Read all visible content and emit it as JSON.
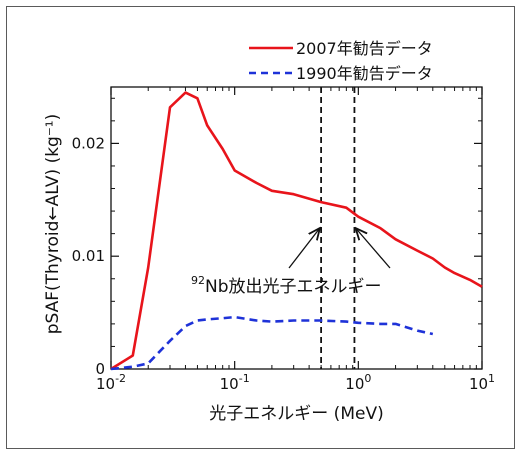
{
  "chart_data": {
    "type": "line",
    "title": "",
    "xlabel": "光子エネルギー (MeV)",
    "ylabel": "pSAF(Thyroid←ALV) (kg⁻¹)",
    "xscale": "log",
    "xlim": [
      0.01,
      10
    ],
    "ylim": [
      0,
      0.025
    ],
    "x_ticks": [
      {
        "value": 0.01,
        "base": "10",
        "exp": "-2"
      },
      {
        "value": 0.1,
        "base": "10",
        "exp": "-1"
      },
      {
        "value": 1,
        "base": "10",
        "exp": "0"
      },
      {
        "value": 10,
        "base": "10",
        "exp": "1"
      }
    ],
    "y_ticks": [
      {
        "value": 0,
        "label": "0"
      },
      {
        "value": 0.01,
        "label": "0.01"
      },
      {
        "value": 0.02,
        "label": "0.02"
      }
    ],
    "grid": false,
    "legend_position": "top-right",
    "series": [
      {
        "name": "2007年勧告データ",
        "color": "#e8141b",
        "style": "solid",
        "x": [
          0.01,
          0.015,
          0.02,
          0.03,
          0.04,
          0.05,
          0.06,
          0.08,
          0.1,
          0.15,
          0.2,
          0.3,
          0.5,
          0.8,
          1,
          1.5,
          2,
          3,
          4,
          5,
          6,
          8,
          10
        ],
        "y": [
          0,
          0.0012,
          0.009,
          0.0232,
          0.0245,
          0.024,
          0.0216,
          0.0195,
          0.0176,
          0.0165,
          0.0158,
          0.0155,
          0.0148,
          0.0143,
          0.0135,
          0.0125,
          0.0115,
          0.0105,
          0.0098,
          0.009,
          0.0085,
          0.0079,
          0.0073
        ]
      },
      {
        "name": "1990年勧告データ",
        "color": "#1e32d8",
        "style": "dashed",
        "x": [
          0.01,
          0.015,
          0.02,
          0.03,
          0.04,
          0.05,
          0.06,
          0.08,
          0.1,
          0.15,
          0.2,
          0.3,
          0.5,
          0.8,
          1,
          1.5,
          2,
          3,
          4
        ],
        "y": [
          0,
          0.0002,
          0.0005,
          0.0025,
          0.0038,
          0.0043,
          0.0044,
          0.0045,
          0.0046,
          0.0043,
          0.0042,
          0.0043,
          0.0043,
          0.0042,
          0.0041,
          0.004,
          0.004,
          0.0034,
          0.0031
        ]
      }
    ],
    "vertical_lines": [
      0.5,
      0.93
    ],
    "annotation": {
      "prefix": "92",
      "text": "Nb放出光子エネルギー"
    }
  },
  "legend": [
    {
      "label": "2007年勧告データ",
      "color": "#e8141b",
      "style": "solid"
    },
    {
      "label": "1990年勧告データ",
      "color": "#1e32d8",
      "style": "dashed"
    }
  ]
}
